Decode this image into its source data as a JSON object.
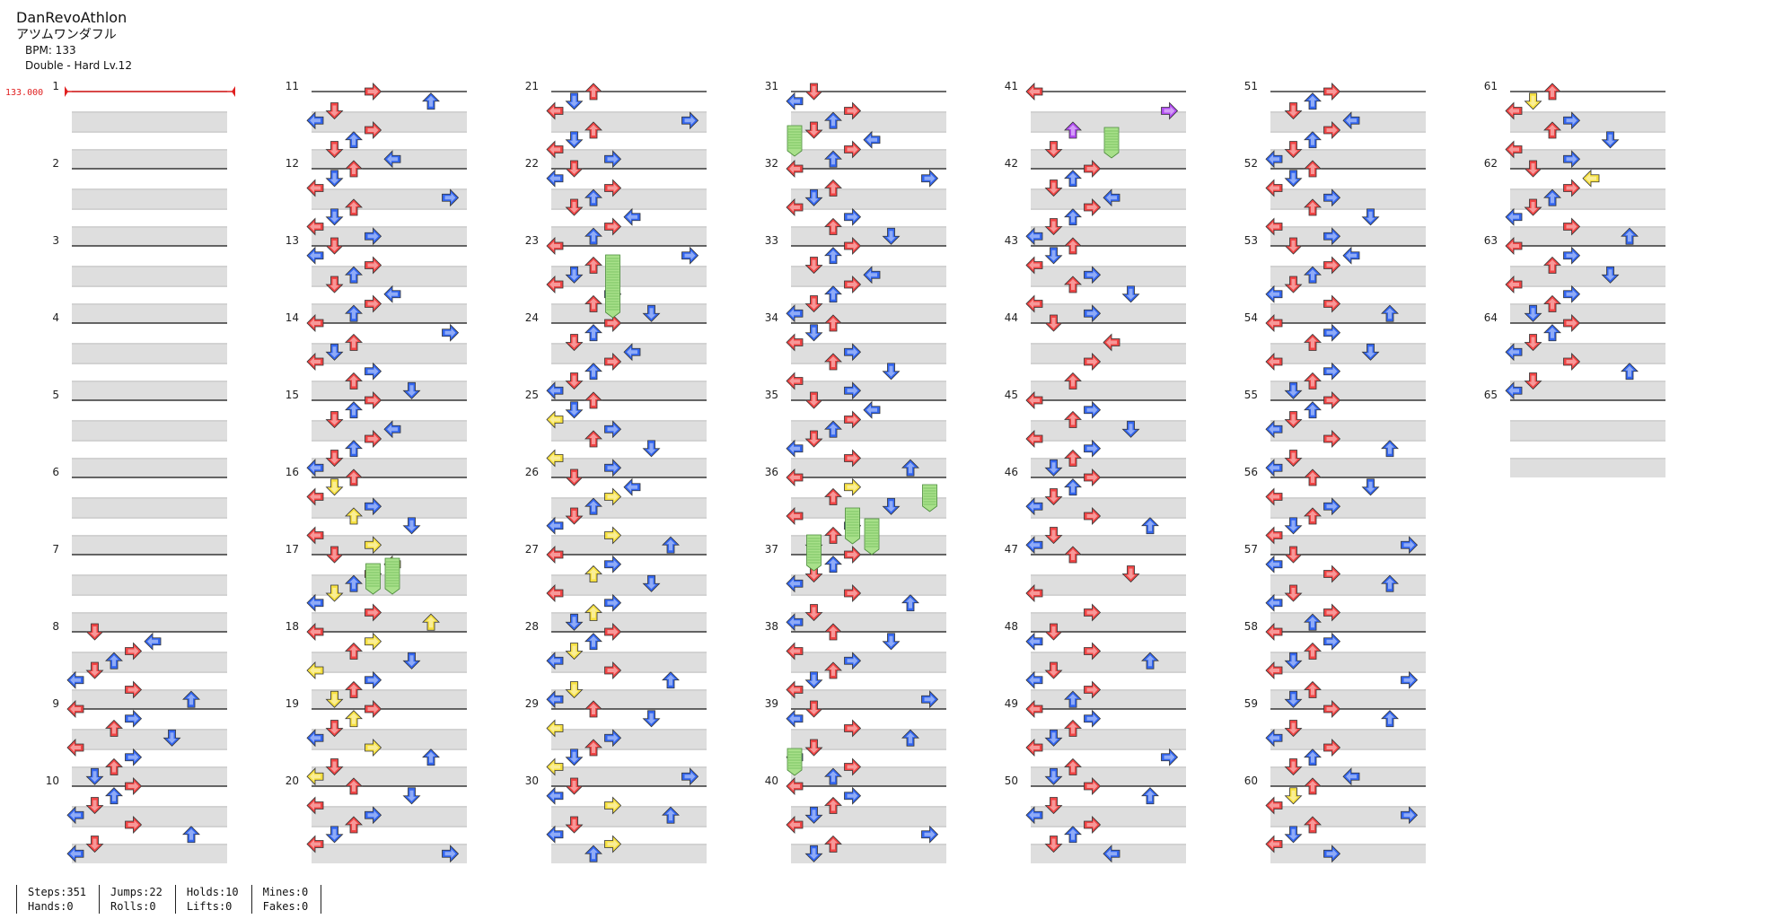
{
  "header": {
    "title": "DanRevoAthlon",
    "song": "アツムワンダフル",
    "bpm_label": "BPM: 133",
    "difficulty": "Double - Hard  Lv.12"
  },
  "bpm_marker": {
    "value_label": "133.000",
    "color": "#e02020"
  },
  "colors": {
    "red_arrow": "#f04444",
    "blue_arrow": "#3366f0",
    "yellow_arrow": "#f6e040",
    "purple_arrow": "#b04cf0",
    "hold_body": "#a8e08a",
    "stripe": "#dedede"
  },
  "chart": {
    "measures": [
      "1",
      "2",
      "3",
      "4",
      "5",
      "6",
      "7",
      "8",
      "9",
      "10",
      "11",
      "12",
      "13",
      "14",
      "15",
      "16",
      "17",
      "18",
      "19",
      "20",
      "21",
      "22",
      "23",
      "24",
      "25",
      "26",
      "27",
      "28",
      "29",
      "30",
      "31",
      "32",
      "33",
      "34",
      "35",
      "36",
      "37",
      "38",
      "39",
      "40",
      "41",
      "42",
      "43",
      "44",
      "45",
      "46",
      "47",
      "48",
      "49",
      "50",
      "51",
      "52",
      "53",
      "54",
      "55",
      "56",
      "57",
      "58",
      "59",
      "60",
      "61",
      "62",
      "63",
      "64",
      "65"
    ],
    "arrow_icons": [
      "arrow-left-icon",
      "arrow-down-icon",
      "arrow-up-icon",
      "arrow-right-icon"
    ]
  },
  "stats": {
    "col1": [
      "Steps:351",
      "Hands:0"
    ],
    "col2": [
      "Jumps:22",
      "Rolls:0"
    ],
    "col3": [
      "Holds:10",
      "Lifts:0"
    ],
    "col4": [
      "Mines:0",
      "Fakes:0"
    ]
  }
}
